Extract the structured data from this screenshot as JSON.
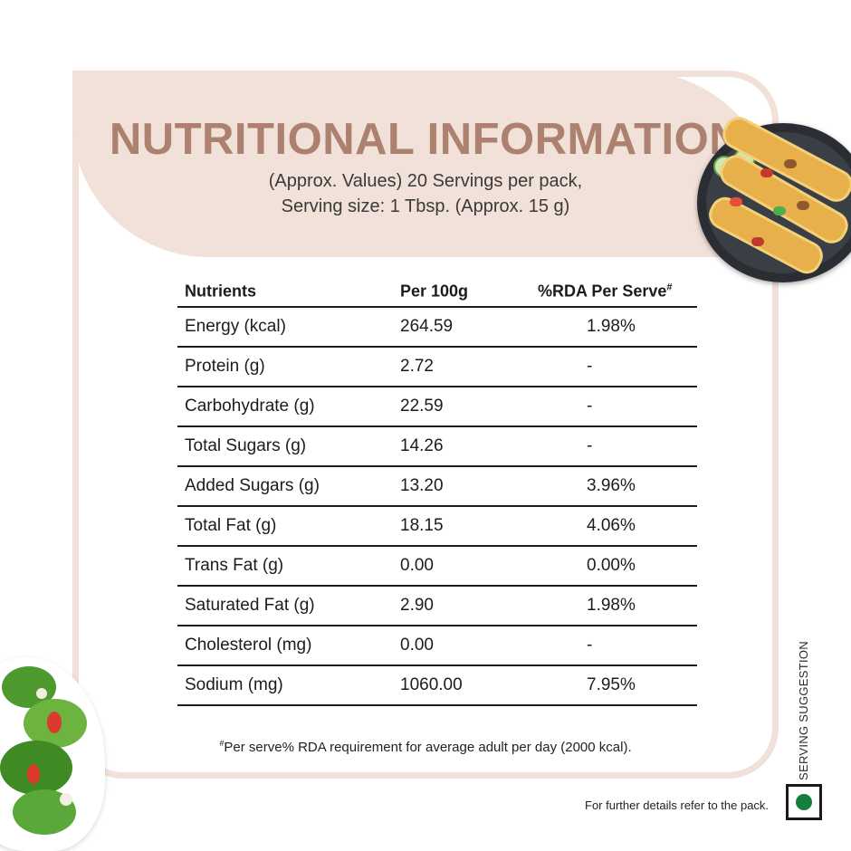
{
  "header": {
    "title": "NUTRITIONAL INFORMATION",
    "subtitle_line1": "(Approx. Values) 20 Servings per pack,",
    "subtitle_line2": "Serving size: 1 Tbsp. (Approx. 15 g)"
  },
  "table": {
    "columns": [
      "Nutrients",
      "Per 100g",
      "%RDA Per Serve"
    ],
    "rda_marker": "#",
    "rows": [
      [
        "Energy (kcal)",
        "264.59",
        "1.98%"
      ],
      [
        "Protein (g)",
        "2.72",
        "-"
      ],
      [
        "Carbohydrate (g)",
        "22.59",
        "-"
      ],
      [
        "Total Sugars (g)",
        "14.26",
        "-"
      ],
      [
        "Added Sugars (g)",
        "13.20",
        "3.96%"
      ],
      [
        "Total Fat (g)",
        "18.15",
        "4.06%"
      ],
      [
        "Trans Fat (g)",
        "0.00",
        "0.00%"
      ],
      [
        "Saturated Fat (g)",
        "2.90",
        "1.98%"
      ],
      [
        "Cholesterol (mg)",
        "0.00",
        "-"
      ],
      [
        "Sodium (mg)",
        "1060.00",
        "7.95%"
      ]
    ]
  },
  "footnote": {
    "marker": "#",
    "text": "Per serve% RDA requirement for average adult per day (2000 kcal)."
  },
  "side_label": "SERVING SUGGESTION",
  "further_details": "For further details refer to the pack.",
  "colors": {
    "title": "#ac8170",
    "band": "#f1e1d9",
    "veg_mark": "#15803d"
  },
  "icons": [
    "taco-plate-image",
    "salad-bowl-image",
    "veg-mark-icon"
  ]
}
